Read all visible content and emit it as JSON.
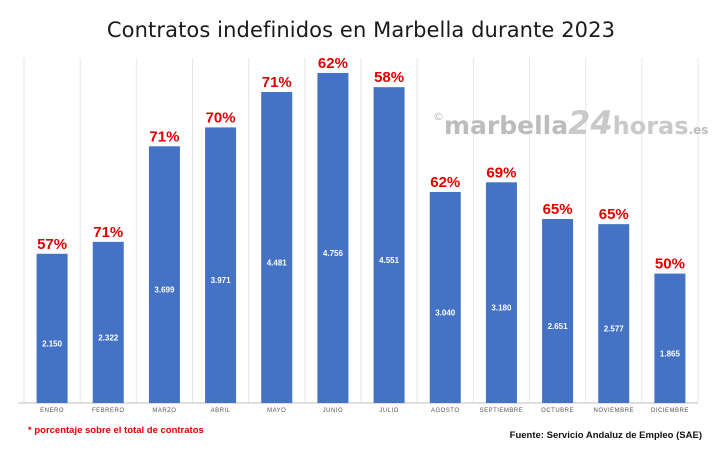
{
  "chart_data": {
    "type": "bar",
    "title": "Contratos indefinidos en Marbella durante 2023",
    "categories": [
      "ENERO",
      "FEBRERO",
      "MARZO",
      "ABRIL",
      "MAYO",
      "JUNIO",
      "JULIO",
      "AGOSTO",
      "SEPTIEMBRE",
      "OCTUBRE",
      "NOVIEMBRE",
      "DICIEMBRE"
    ],
    "values": [
      2150,
      2322,
      3699,
      3971,
      4481,
      4756,
      4551,
      3040,
      3180,
      2651,
      2577,
      1865
    ],
    "value_labels": [
      "2.150",
      "2.322",
      "3.699",
      "3.971",
      "4.481",
      "4.756",
      "4.551",
      "3.040",
      "3.180",
      "2.651",
      "2.577",
      "1.865"
    ],
    "percent_labels": [
      "57%",
      "71%",
      "71%",
      "70%",
      "71%",
      "62%",
      "58%",
      "62%",
      "69%",
      "65%",
      "65%",
      "50%"
    ],
    "ylim": [
      0,
      5000
    ],
    "xlabel": "",
    "ylabel": "",
    "grid": true,
    "colors": {
      "bar": "#4472c4",
      "percent": "#e00000",
      "value": "#ffffff"
    }
  },
  "watermark": {
    "copyright": "©",
    "part1": "marbella",
    "part2": "24",
    "part3": "horas",
    "part4": ".es"
  },
  "footnote": "* porcentaje sobre el total de contratos",
  "source": "Fuente: Servicio Andaluz de Empleo (SAE)"
}
